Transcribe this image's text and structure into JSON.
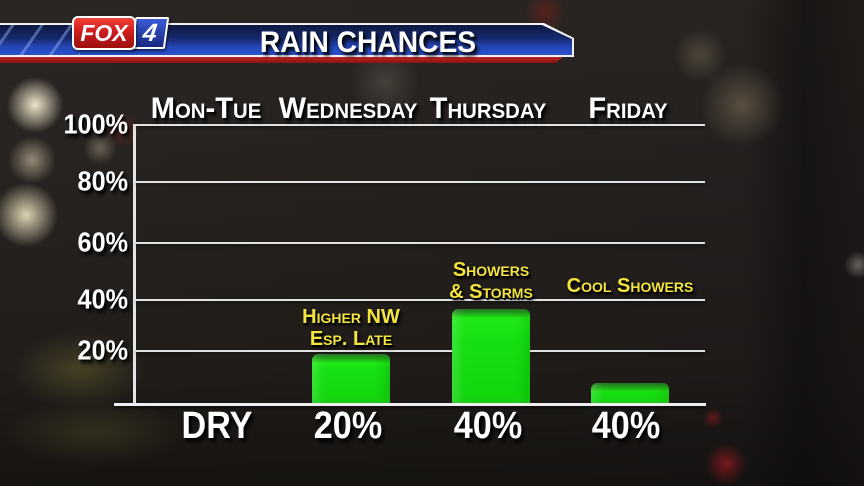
{
  "station": {
    "name": "FOX",
    "channel": "4"
  },
  "banner": {
    "title": "RAIN CHANCES"
  },
  "chart_data": {
    "type": "bar",
    "title": "RAIN CHANCES",
    "categories": [
      "Mon-Tue",
      "Wednesday",
      "Thursday",
      "Friday"
    ],
    "value_labels": [
      "DRY",
      "20%",
      "40%",
      "40%"
    ],
    "values_pct": [
      0,
      20,
      40,
      40
    ],
    "bar_visual_heights_pct": [
      0,
      18,
      34,
      8
    ],
    "note_bottom_pct": [
      0,
      18,
      35,
      37
    ],
    "annotations": [
      [],
      [
        "Higher NW",
        "Esp. Late"
      ],
      [
        "Showers",
        "& Storms"
      ],
      [
        "Cool Showers"
      ]
    ],
    "y_ticks": [
      "100%",
      "80%",
      "60%",
      "40%",
      "20%"
    ],
    "ylim": [
      0,
      100
    ],
    "grid": true,
    "legend": "none",
    "bar_color": "#15dd10",
    "annotation_color": "#f4e43e",
    "axis_color": "#eeeeee",
    "label_color": "#ffffff"
  }
}
